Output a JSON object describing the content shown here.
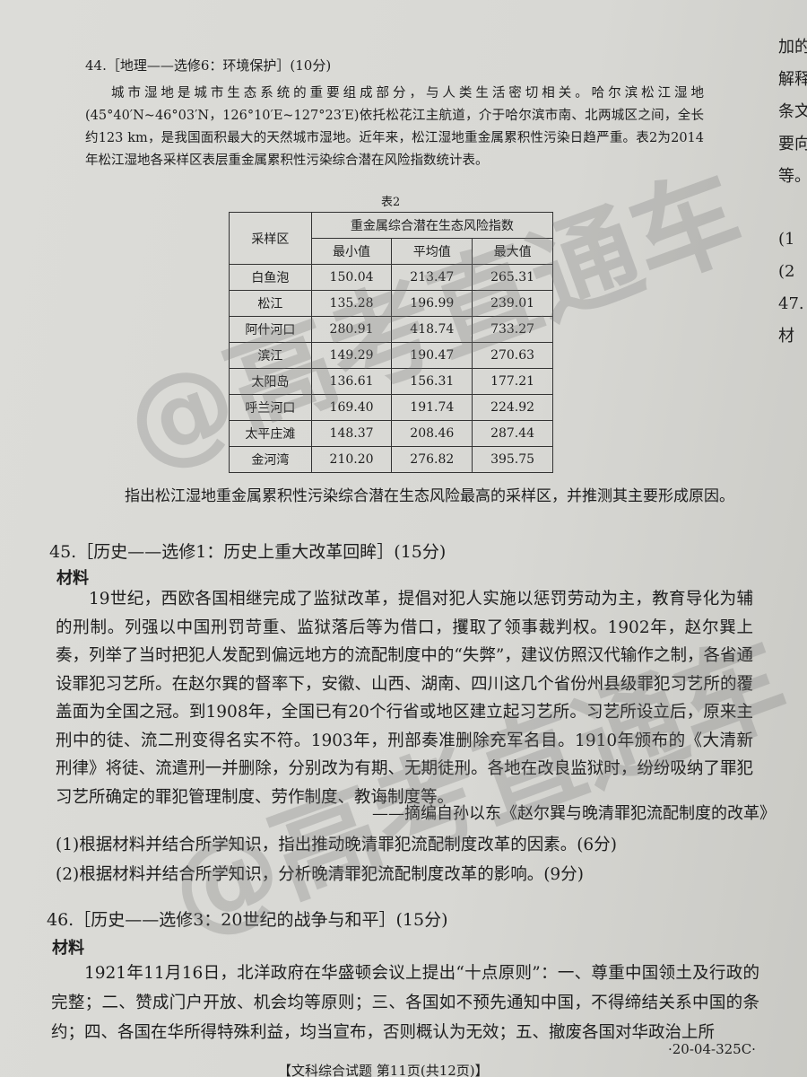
{
  "q44": {
    "title": "44.［地理——选修6：环境保护］(10分)",
    "paragraph": "城市湿地是城市生态系统的重要组成部分，与人类生活密切相关。哈尔滨松江湿地(45°40′N~46°03′N，126°10′E~127°23′E)依托松花江主航道，介于哈尔滨市南、北两城区之间，全长约123 km，是我国面积最大的天然城市湿地。近年来，松江湿地重金属累积性污染日趋严重。表2为2014年松江湿地各采样区表层重金属累积性污染综合潜在风险指数统计表。",
    "table": {
      "caption": "表2",
      "header_row_label": "采样区",
      "header_group": "重金属综合潜在生态风险指数",
      "columns": [
        "最小值",
        "平均值",
        "最大值"
      ],
      "rows": [
        [
          "白鱼泡",
          "150.04",
          "213.47",
          "265.31"
        ],
        [
          "松江",
          "135.28",
          "196.99",
          "239.01"
        ],
        [
          "阿什河口",
          "280.91",
          "418.74",
          "733.27"
        ],
        [
          "滨江",
          "149.29",
          "190.47",
          "270.63"
        ],
        [
          "太阳岛",
          "136.61",
          "156.31",
          "177.21"
        ],
        [
          "呼兰河口",
          "169.40",
          "191.74",
          "224.92"
        ],
        [
          "太平庄滩",
          "148.37",
          "208.46",
          "287.44"
        ],
        [
          "金河湾",
          "210.20",
          "276.82",
          "395.75"
        ]
      ]
    },
    "question": "指出松江湿地重金属累积性污染综合潜在生态风险最高的采样区，并推测其主要形成原因。"
  },
  "q45": {
    "title": "45.［历史——选修1：历史上重大改革回眸］(15分)",
    "material_label": "材料",
    "paragraph": "19世纪，西欧各国相继完成了监狱改革，提倡对犯人实施以惩罚劳动为主，教育导化为辅的刑制。列强以中国刑罚苛重、监狱落后等为借口，攫取了领事裁判权。1902年，赵尔巽上奏，列举了当时把犯人发配到偏远地方的流配制度中的“失弊”，建议仿照汉代输作之制，各省通设罪犯习艺所。在赵尔巽的督率下，安徽、山西、湖南、四川这几个省份州县级罪犯习艺所的覆盖面为全国之冠。到1908年，全国已有20个行省或地区建立起习艺所。习艺所设立后，原来主刑中的徒、流二刑变得名实不符。1903年，刑部奏准删除充军名目。1910年颁布的《大清新刑律》将徒、流遣刑一并删除，分别改为有期、无期徒刑。各地在改良监狱时，纷纷吸纳了罪犯习艺所确定的罪犯管理制度、劳作制度、教诲制度等。",
    "source": "——摘编自孙以东《赵尔巽与晚清罪犯流配制度的改革》",
    "questions": [
      "(1)根据材料并结合所学知识，指出推动晚清罪犯流配制度改革的因素。(6分)",
      "(2)根据材料并结合所学知识，分析晚清罪犯流配制度改革的影响。(9分)"
    ]
  },
  "q46": {
    "title": "46.［历史——选修3：20世纪的战争与和平］(15分)",
    "material_label": "材料",
    "paragraph": "1921年11月16日，北洋政府在华盛顿会议上提出“十点原则”：一、尊重中国领土及行政的完整；二、赞成门户开放、机会均等原则；三、各国如不预先通知中国，不得缔结关系中国的条约；四、各国在华所得特殊利益，均当宣布，否则概认为无效；五、撤废各国对华政治上所"
  },
  "margin": [
    "加的",
    "解释",
    "条文",
    "要向",
    "等。",
    "(1",
    "(2",
    "47.",
    "材"
  ],
  "watermarks": [
    "@高考直通车",
    "@高考直通车"
  ],
  "code": "·20-04-325C·",
  "footer": "【文科综合试题 第11页(共12页)】"
}
